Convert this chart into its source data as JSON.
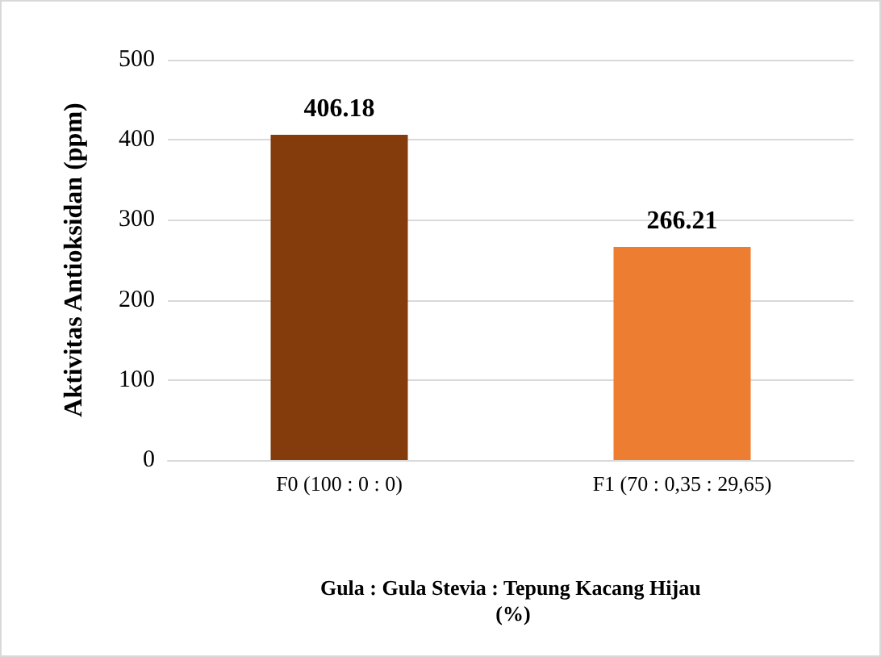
{
  "chart_data": {
    "type": "bar",
    "categories": [
      "F0 (100 : 0 : 0)",
      "F1 (70 : 0,35 : 29,65)"
    ],
    "values": [
      406.18,
      266.21
    ],
    "colors": [
      "#843c0c",
      "#ed7d31"
    ],
    "xlabel": "Gula : Gula Stevia : Tepung Kacang Hijau (%)",
    "ylabel": "Aktivitas Antioksidan (ppm)",
    "ylim": [
      0,
      500
    ],
    "yticks": [
      0,
      100,
      200,
      300,
      400,
      500
    ],
    "grid": "y",
    "data_labels": true
  }
}
